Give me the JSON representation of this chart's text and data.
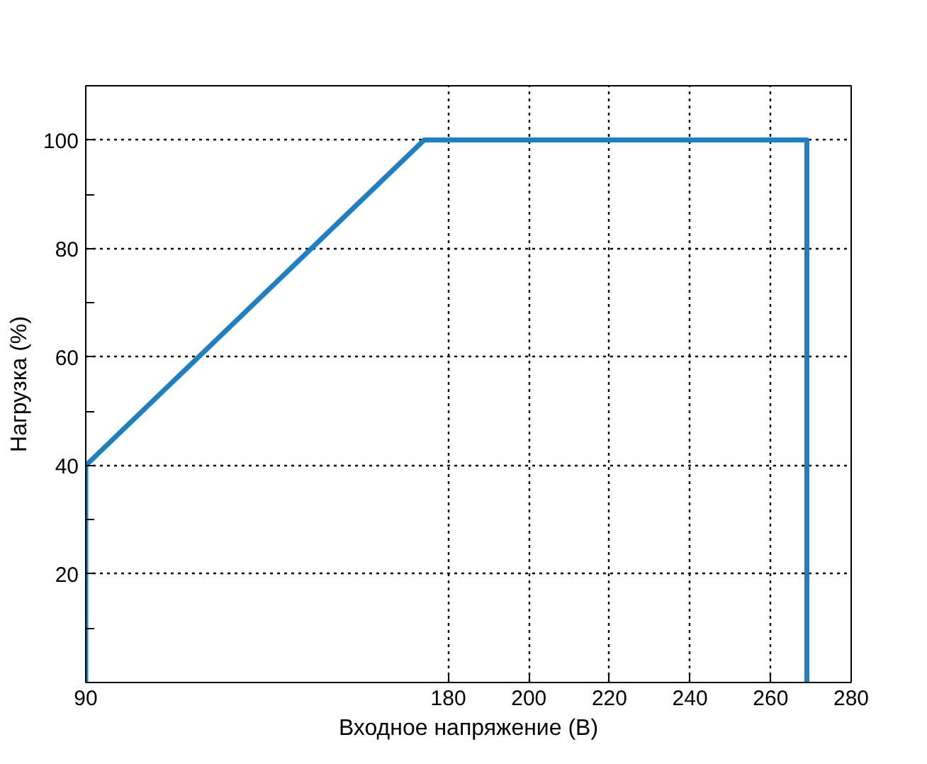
{
  "chart_data": {
    "type": "line",
    "xlabel": "Входное напряжение (В)",
    "ylabel": "Нагрузка (%)",
    "x": [
      90,
      90,
      174,
      269,
      269
    ],
    "series": [
      {
        "color": "#1f7fc0",
        "values": [
          0,
          40,
          100,
          100,
          0
        ]
      }
    ],
    "xlim": [
      90,
      280
    ],
    "xticks": [
      90,
      180,
      200,
      220,
      240,
      260,
      280
    ],
    "ylim": [
      0,
      110
    ],
    "yticks": [
      {
        "value": 10,
        "label": null
      },
      20,
      {
        "value": 30,
        "label": null
      },
      40,
      {
        "value": 50,
        "label": null
      },
      60,
      {
        "value": 70,
        "label": null
      },
      80,
      {
        "value": 90,
        "label": null
      },
      100
    ],
    "grid": true,
    "marker": "none",
    "line_style": "solid"
  }
}
